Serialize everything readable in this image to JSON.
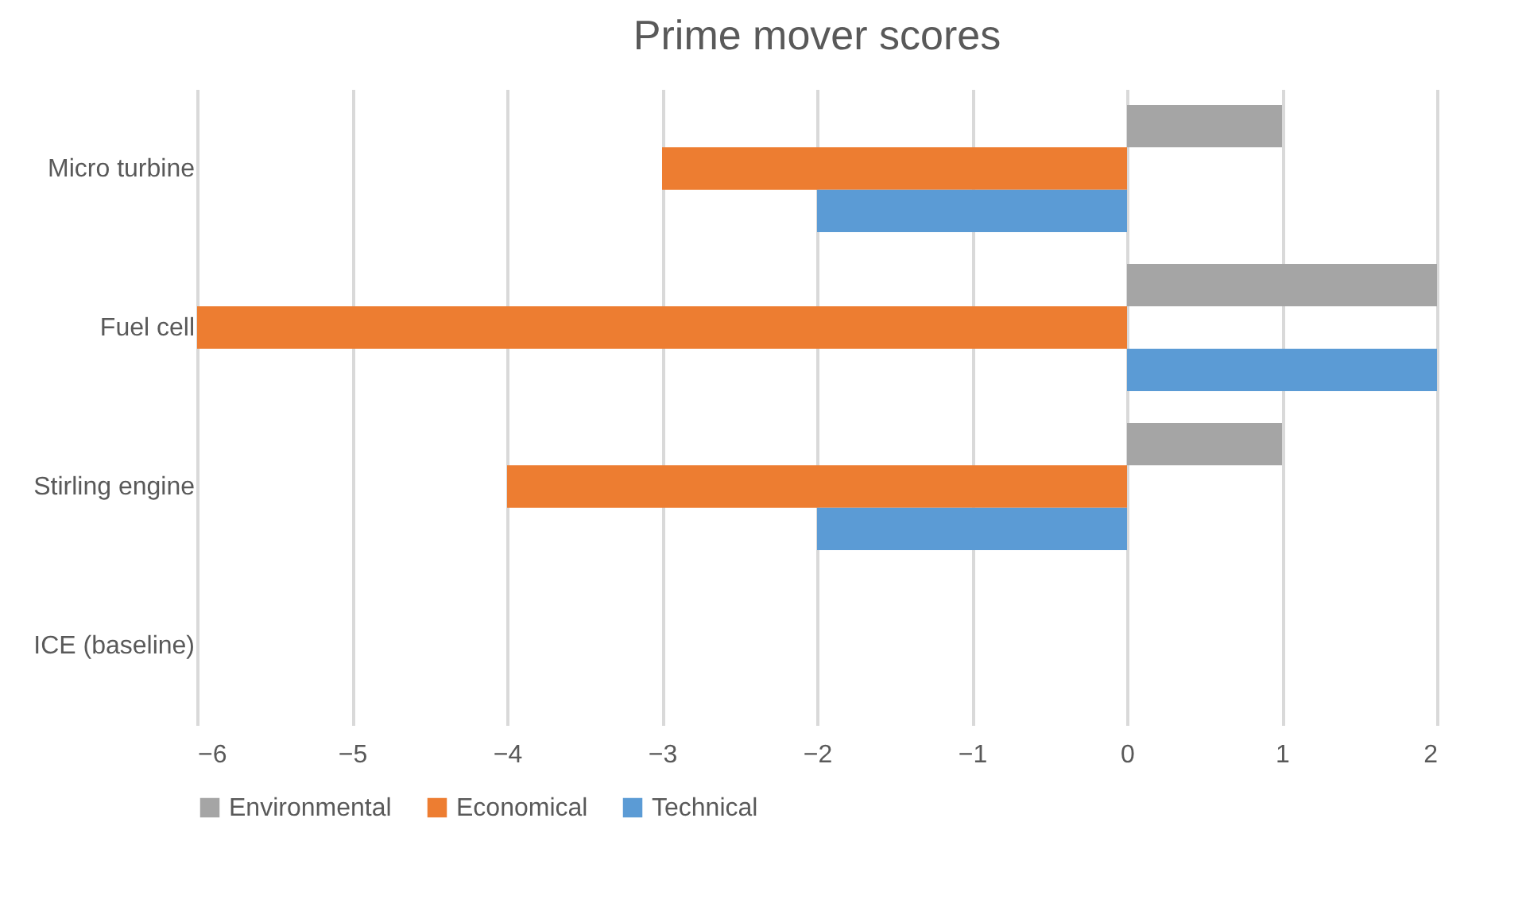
{
  "chart_data": {
    "type": "bar",
    "orientation": "horizontal",
    "title": "Prime mover scores",
    "categories": [
      "Micro turbine",
      "Fuel cell",
      "Stirling engine",
      "ICE (baseline)"
    ],
    "series": [
      {
        "name": "Environmental",
        "color": "#a5a5a5",
        "values": [
          1,
          2,
          1,
          0
        ]
      },
      {
        "name": "Economical",
        "color": "#ed7d31",
        "values": [
          -3,
          -6,
          -4,
          0
        ]
      },
      {
        "name": "Technical",
        "color": "#5b9bd5",
        "values": [
          -2,
          2,
          -2,
          0
        ]
      }
    ],
    "xlim": [
      -6,
      2
    ],
    "xticks": [
      -6,
      -5,
      -4,
      -3,
      -2,
      -1,
      0,
      1,
      2
    ],
    "grid": "x",
    "legend": "bottom"
  }
}
